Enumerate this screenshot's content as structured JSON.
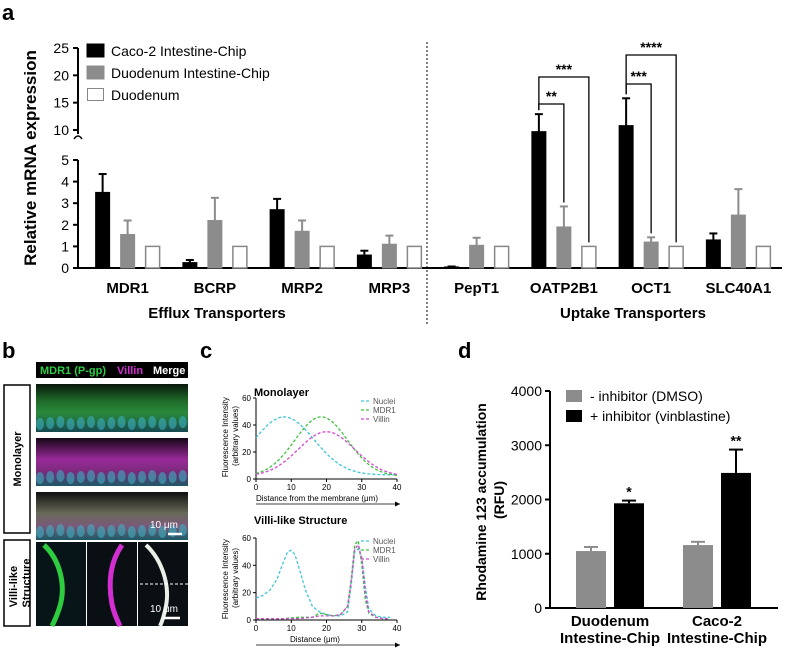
{
  "panel_labels": {
    "a": "a",
    "b": "b",
    "c": "c",
    "d": "d"
  },
  "panel_b": {
    "header": {
      "mdr1": "MDR1 (P-gp)",
      "villin": "Villin",
      "merge": "Merge"
    },
    "row_monolayer": "Monolayer",
    "row_villi": "Villi-like Structure",
    "scale_bar_1": "10 μm",
    "scale_bar_2": "10 μm",
    "colors": {
      "green": "#2ecc40",
      "magenta": "#d22ed2",
      "cyan": "#3fb6c8"
    }
  },
  "chart_data": [
    {
      "id": "a",
      "type": "bar",
      "ylabel": "Relative mRNA expression",
      "y_ticks_lower": [
        0,
        1,
        2,
        3,
        4,
        5
      ],
      "y_ticks_upper": [
        10,
        15,
        20,
        25
      ],
      "ylim_lower": [
        0,
        5
      ],
      "ylim_upper": [
        10,
        25
      ],
      "broken_axis": true,
      "categories": [
        "MDR1",
        "BCRP",
        "MRP2",
        "MRP3",
        "PepT1",
        "OATP2B1",
        "OCT1",
        "SLC40A1"
      ],
      "groups": [
        {
          "name": "Efflux Transporters",
          "categories": [
            "MDR1",
            "BCRP",
            "MRP2",
            "MRP3"
          ]
        },
        {
          "name": "Uptake Transporters",
          "categories": [
            "PepT1",
            "OATP2B1",
            "OCT1",
            "SLC40A1"
          ]
        }
      ],
      "series": [
        {
          "name": "Caco-2 Intestine-Chip",
          "color": "#000000",
          "values": [
            3.5,
            0.25,
            2.7,
            0.6,
            0.05,
            9.7,
            10.8,
            1.3
          ],
          "errors": [
            0.85,
            0.12,
            0.5,
            0.2,
            0.02,
            3.2,
            5.0,
            0.3
          ]
        },
        {
          "name": "Duodenum Intestine-Chip",
          "color": "#8c8c8c",
          "values": [
            1.55,
            2.2,
            1.7,
            1.1,
            1.05,
            1.9,
            1.2,
            2.45
          ],
          "errors": [
            0.65,
            1.05,
            0.5,
            0.4,
            0.35,
            0.95,
            0.22,
            1.2
          ]
        },
        {
          "name": "Duodenum",
          "color": "#ffffff",
          "values": [
            1.0,
            1.0,
            1.0,
            1.0,
            1.0,
            1.0,
            1.0,
            1.0
          ],
          "errors": [
            0,
            0,
            0,
            0,
            0,
            0,
            0,
            0
          ]
        }
      ],
      "significance": [
        {
          "category": "OATP2B1",
          "from": "Caco-2 Intestine-Chip",
          "to": "Duodenum Intestine-Chip",
          "label": "**"
        },
        {
          "category": "OATP2B1",
          "from": "Caco-2 Intestine-Chip",
          "to": "Duodenum",
          "label": "***"
        },
        {
          "category": "OCT1",
          "from": "Caco-2 Intestine-Chip",
          "to": "Duodenum Intestine-Chip",
          "label": "***"
        },
        {
          "category": "OCT1",
          "from": "Caco-2 Intestine-Chip",
          "to": "Duodenum",
          "label": "****"
        }
      ],
      "legend_position": "top-left"
    },
    {
      "id": "c1",
      "type": "line",
      "title": "Monolayer",
      "ylabel": "Fluorescence Intensity (arbitrary values)",
      "xlabel": "Distance from the membrane (μm)",
      "xlim": [
        0,
        40
      ],
      "ylim": [
        0,
        60
      ],
      "x_ticks": [
        0,
        10,
        20,
        30,
        40
      ],
      "y_ticks": [
        0,
        20,
        40,
        60
      ],
      "series": [
        {
          "name": "Nuclei",
          "color": "#3fc6d9",
          "peak_x": 8,
          "peak_y": 46,
          "sigma": 8.5,
          "base": 3
        },
        {
          "name": "MDR1",
          "color": "#3cc43c",
          "peak_x": 18.5,
          "peak_y": 46,
          "sigma": 7.5,
          "base": 2
        },
        {
          "name": "Villin",
          "color": "#d24ad2",
          "peak_x": 20,
          "peak_y": 35,
          "sigma": 8,
          "base": 2
        }
      ],
      "legend_position": "top-right"
    },
    {
      "id": "c2",
      "type": "line",
      "title": "Villi-like Structure",
      "ylabel": "Fluorescence Intensity (arbitrary values)",
      "xlabel": "Distance (μm)",
      "xlim": [
        0,
        40
      ],
      "ylim": [
        0,
        60
      ],
      "x_ticks": [
        0,
        10,
        20,
        30,
        40
      ],
      "y_ticks": [
        0,
        20,
        40,
        60
      ],
      "series": [
        {
          "name": "Nuclei",
          "color": "#3fc6d9",
          "x": [
            0,
            2,
            4,
            6,
            8,
            9,
            10,
            11,
            12,
            14,
            16,
            18,
            20,
            22,
            24,
            26,
            27,
            28,
            29,
            30,
            31,
            32,
            34,
            36,
            38
          ],
          "y": [
            16,
            18,
            22,
            30,
            44,
            50,
            51,
            48,
            40,
            22,
            10,
            6,
            4,
            3,
            3,
            6,
            25,
            50,
            52,
            46,
            25,
            8,
            3,
            2,
            2
          ]
        },
        {
          "name": "MDR1",
          "color": "#3cc43c",
          "x": [
            0,
            4,
            8,
            12,
            16,
            18,
            20,
            22,
            24,
            26,
            27,
            28,
            29,
            30,
            31,
            32,
            34,
            36,
            38
          ],
          "y": [
            1,
            1,
            1,
            2,
            2,
            5,
            4,
            3,
            4,
            10,
            30,
            55,
            58,
            40,
            15,
            5,
            2,
            1,
            1
          ]
        },
        {
          "name": "Villin",
          "color": "#d24ad2",
          "x": [
            0,
            4,
            8,
            12,
            16,
            18,
            20,
            22,
            24,
            26,
            27,
            28,
            29,
            30,
            31,
            32,
            34,
            36,
            38
          ],
          "y": [
            1,
            1,
            1,
            1,
            2,
            3,
            3,
            3,
            4,
            10,
            28,
            52,
            55,
            45,
            20,
            6,
            2,
            1,
            1
          ]
        }
      ],
      "legend_position": "top-right"
    },
    {
      "id": "d",
      "type": "bar",
      "ylabel": "Rhodamine 123 accumulation (RFU)",
      "ylim": [
        0,
        4000
      ],
      "y_ticks": [
        0,
        1000,
        2000,
        3000,
        4000
      ],
      "categories": [
        "Duodenum Intestine-Chip",
        "Caco-2 Intestine-Chip"
      ],
      "category_lines": [
        [
          "Duodenum",
          "Intestine-Chip"
        ],
        [
          "Caco-2",
          "Intestine-Chip"
        ]
      ],
      "series": [
        {
          "name": "- inhibitor (DMSO)",
          "color": "#8c8c8c",
          "values": [
            1050,
            1160
          ],
          "errors": [
            75,
            60
          ]
        },
        {
          "name": "+ inhibitor (vinblastine)",
          "color": "#000000",
          "values": [
            1930,
            2490
          ],
          "errors": [
            50,
            430
          ]
        }
      ],
      "significance": [
        {
          "category": "Duodenum Intestine-Chip",
          "series": "+ inhibitor (vinblastine)",
          "label": "*"
        },
        {
          "category": "Caco-2 Intestine-Chip",
          "series": "+ inhibitor (vinblastine)",
          "label": "**"
        }
      ],
      "legend_position": "top-left"
    }
  ]
}
